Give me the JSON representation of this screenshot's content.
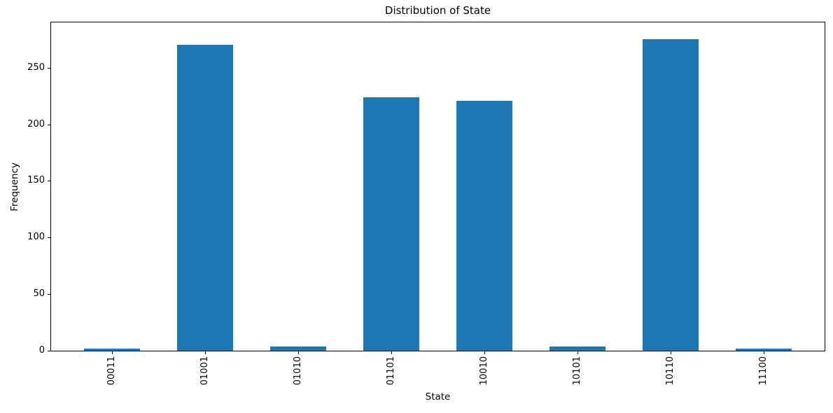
{
  "chart_data": {
    "type": "bar",
    "title": "Distribution of State",
    "xlabel": "State",
    "ylabel": "Frequency",
    "categories": [
      "00011",
      "01001",
      "01010",
      "01101",
      "10010",
      "10101",
      "10110",
      "11100"
    ],
    "values": [
      2,
      270,
      4,
      224,
      221,
      4,
      275,
      2
    ],
    "yticks": [
      0,
      50,
      100,
      150,
      200,
      250
    ],
    "ylim": [
      0,
      290
    ],
    "x_tick_rotation": 90,
    "grid": false,
    "bar_color": "#1f77b4",
    "axis_color": "#000000",
    "background_color": "#ffffff"
  }
}
